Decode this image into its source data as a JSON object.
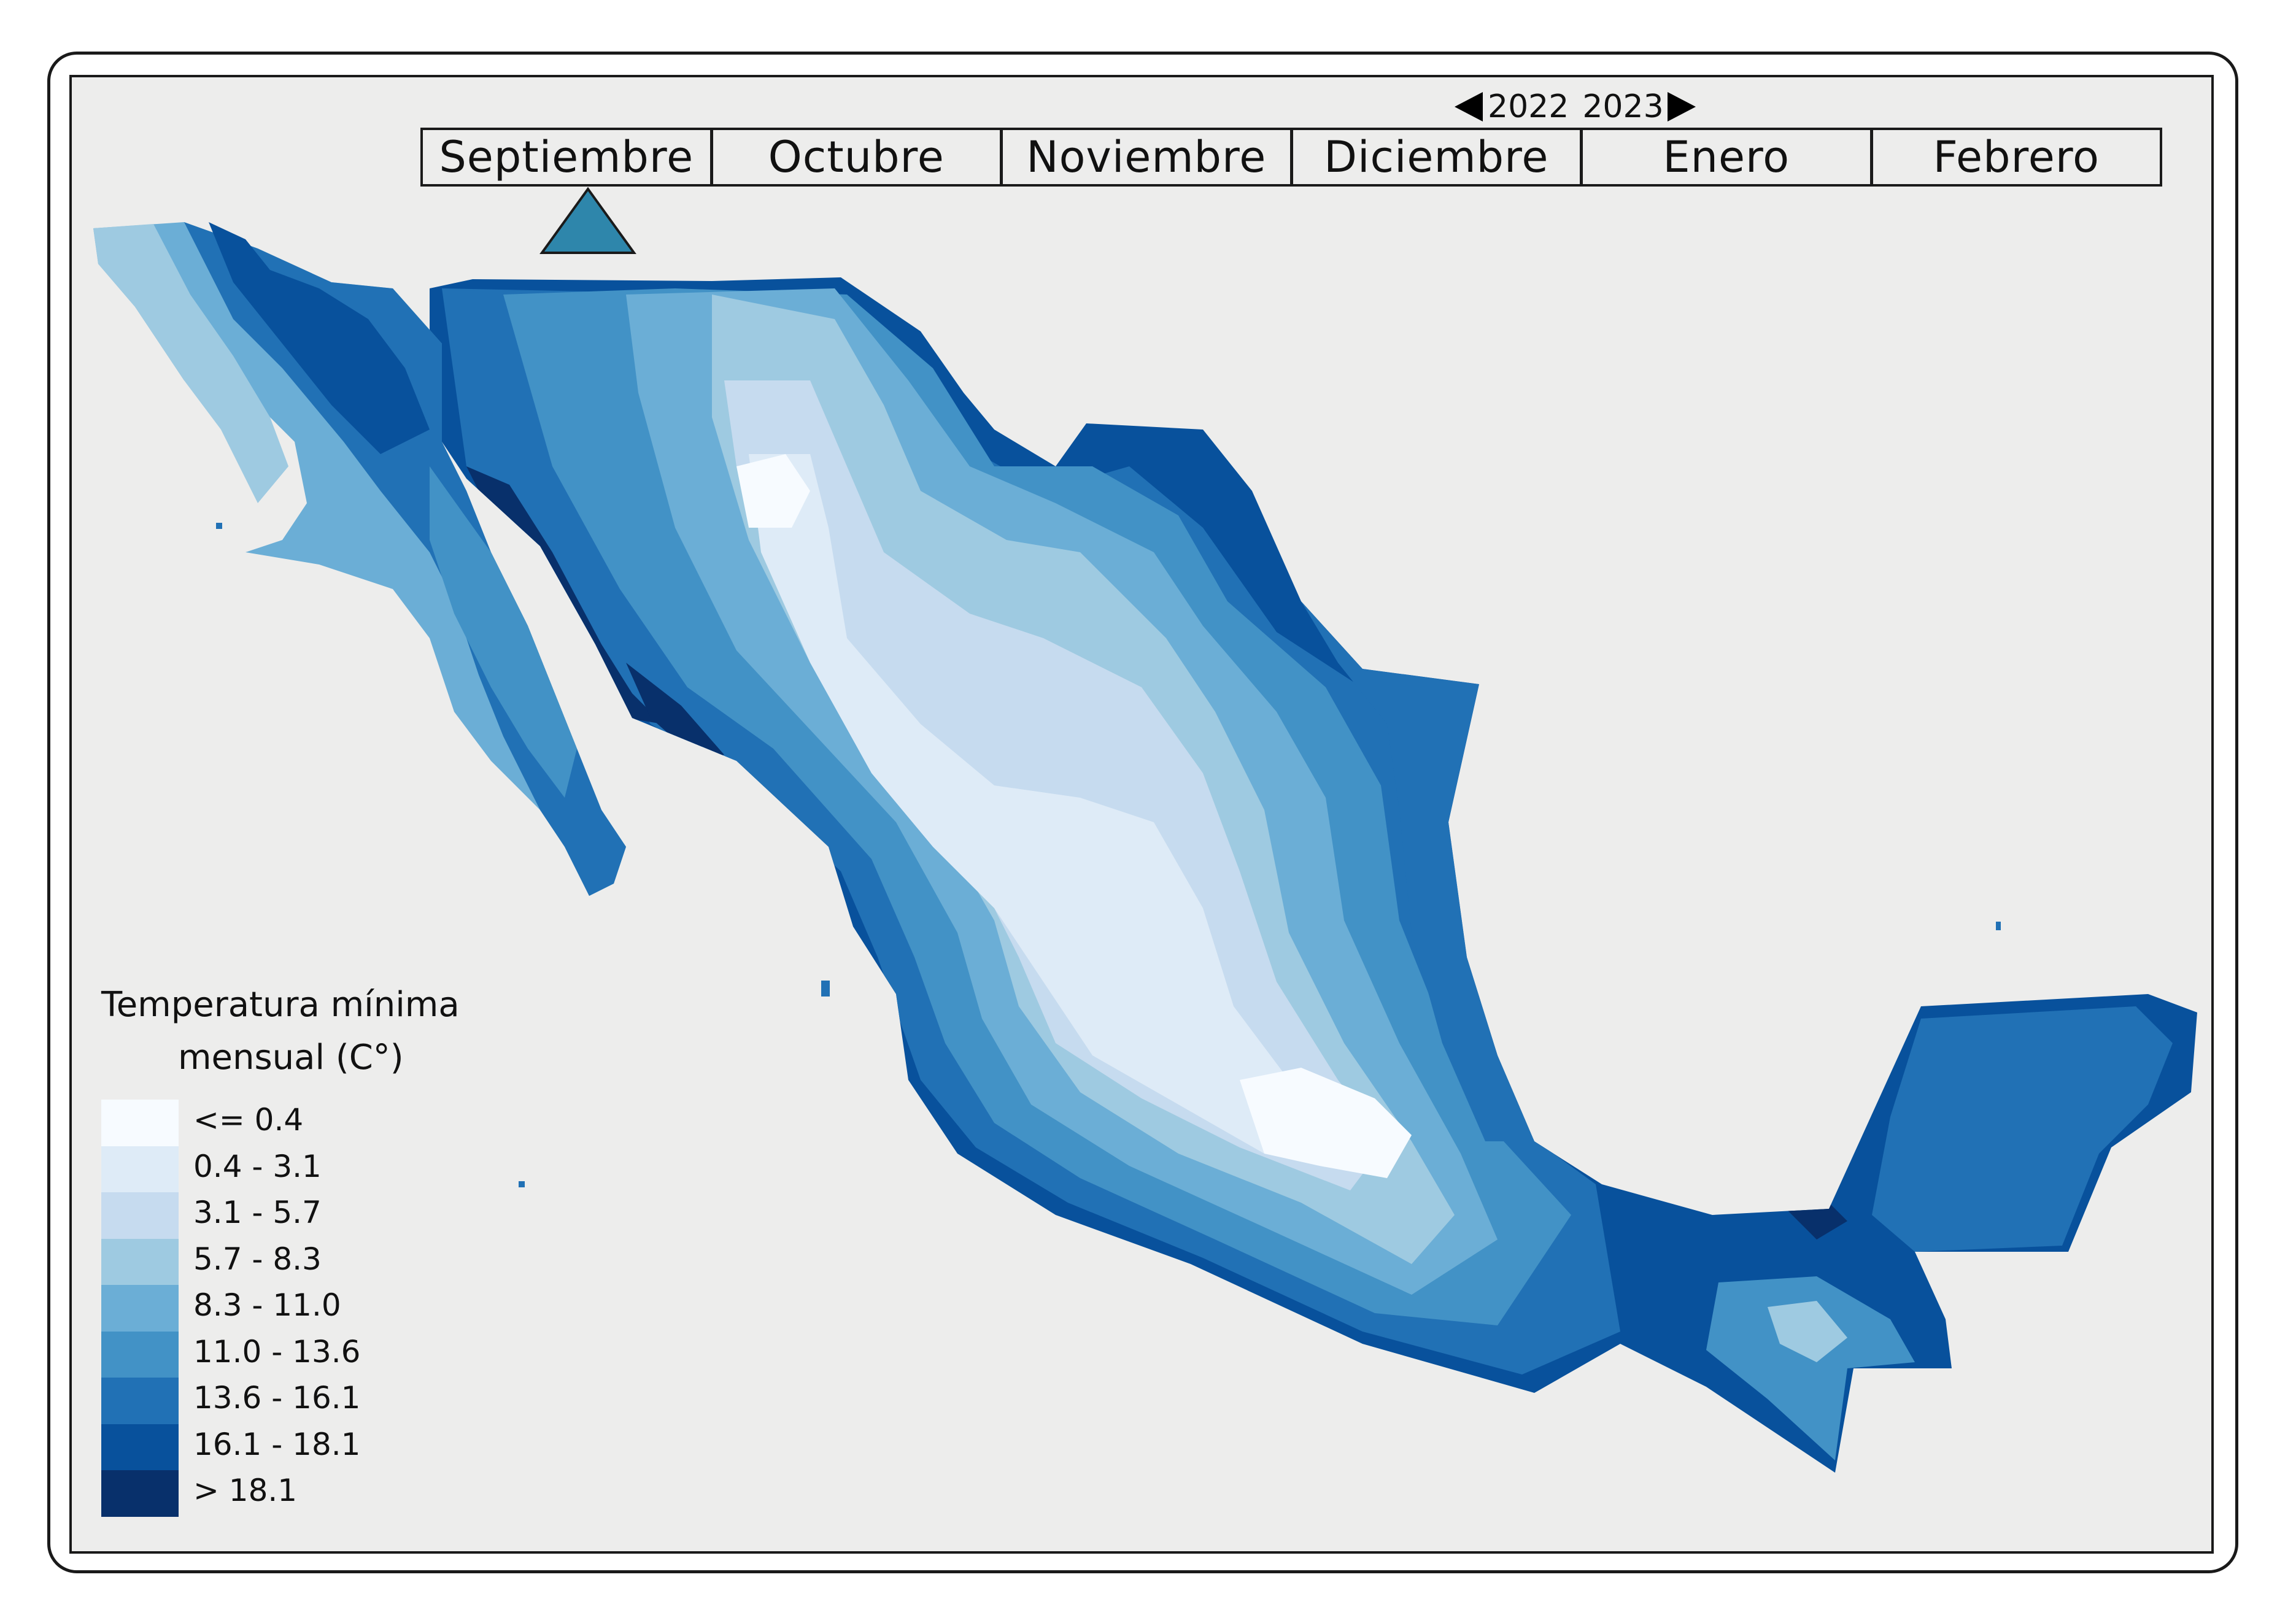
{
  "year_selector": {
    "prev_year": "2022",
    "next_year": "2023",
    "prev_icon": "triangle-left-icon",
    "next_icon": "triangle-right-icon"
  },
  "months": [
    "Septiembre",
    "Octubre",
    "Noviembre",
    "Diciembre",
    "Enero",
    "Febrero"
  ],
  "selected_month": "Septiembre",
  "selected_indicator_color": "#2e86ab",
  "legend": {
    "title_line1": "Temperatura mínima",
    "title_line2": "mensual (C°)",
    "classes": [
      {
        "label": "<= 0.4",
        "color": "#f7fbff"
      },
      {
        "label": "0.4 - 3.1",
        "color": "#deebf7"
      },
      {
        "label": "3.1 - 5.7",
        "color": "#c6dbef"
      },
      {
        "label": "5.7 - 8.3",
        "color": "#9ecae1"
      },
      {
        "label": "8.3 - 11.0",
        "color": "#6baed6"
      },
      {
        "label": "11.0 - 13.6",
        "color": "#4292c6"
      },
      {
        "label": "13.6 - 16.1",
        "color": "#2171b5"
      },
      {
        "label": "16.1 - 18.1",
        "color": "#08519c"
      },
      {
        "label": "> 18.1",
        "color": "#08306b"
      }
    ]
  },
  "colors": {
    "background": "#ededec",
    "frame": "#1a1a1a"
  }
}
